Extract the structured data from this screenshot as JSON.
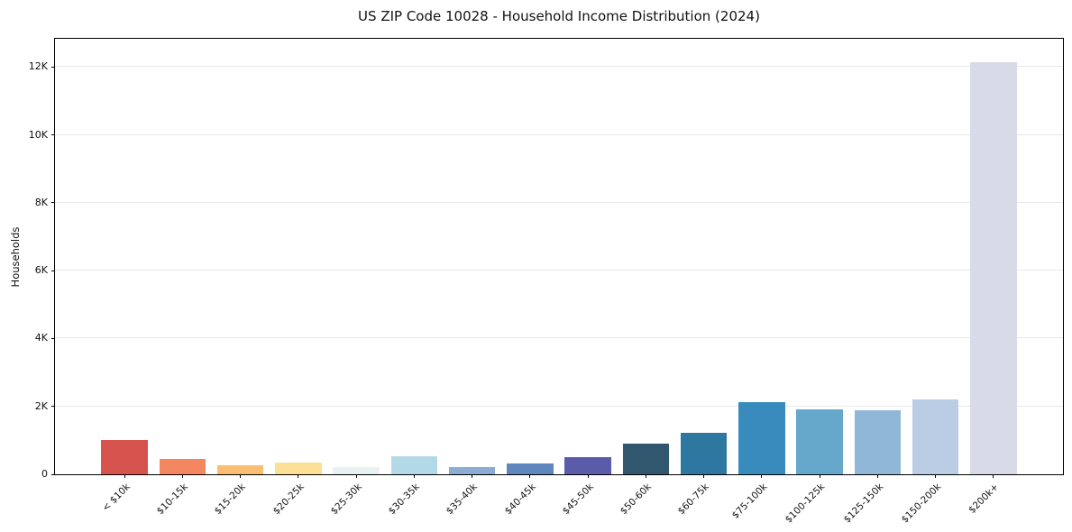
{
  "title": "US ZIP Code 10028 - Household Income Distribution (2024)",
  "chart_data": {
    "type": "bar",
    "title": "US ZIP Code 10028 - Household Income Distribution (2024)",
    "xlabel": "",
    "ylabel": "Households",
    "categories": [
      "< $10k",
      "$10-15k",
      "$15-20k",
      "$20-25k",
      "$25-30k",
      "$30-35k",
      "$35-40k",
      "$40-45k",
      "$45-50k",
      "$50-60k",
      "$60-75k",
      "$75-100k",
      "$100-125k",
      "$125-150k",
      "$150-200k",
      "$200k+"
    ],
    "values": [
      1000,
      440,
      270,
      350,
      200,
      540,
      220,
      320,
      500,
      910,
      1210,
      2120,
      1900,
      1880,
      2200,
      12150
    ],
    "bar_colors": [
      "#d6534e",
      "#f4875f",
      "#fabd74",
      "#fce095",
      "#e9f2f3",
      "#b3d9e9",
      "#8badd2",
      "#5f86bd",
      "#5a5caa",
      "#30576d",
      "#2e77a0",
      "#398bbe",
      "#65a8cb",
      "#90b7d8",
      "#bacde4",
      "#d9dae7"
    ],
    "ylim": [
      0,
      12830
    ],
    "yticks": [
      {
        "value": 0,
        "label": "0"
      },
      {
        "value": 2000,
        "label": "2K"
      },
      {
        "value": 4000,
        "label": "4K"
      },
      {
        "value": 6000,
        "label": "6K"
      },
      {
        "value": 8000,
        "label": "8K"
      },
      {
        "value": 10000,
        "label": "10K"
      },
      {
        "value": 12000,
        "label": "12K"
      }
    ],
    "grid": "horizontal",
    "gridline_color": "#e9e9e9",
    "spine_color": "#000000",
    "background": "#ffffff",
    "legend": "none"
  }
}
